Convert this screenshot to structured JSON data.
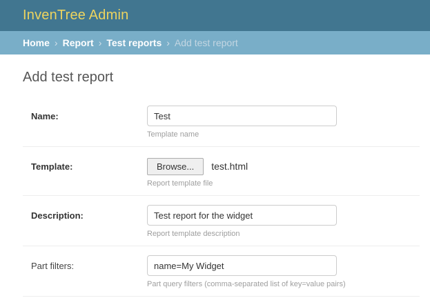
{
  "header": {
    "title": "InvenTree Admin"
  },
  "breadcrumbs": {
    "separator": "›",
    "items": [
      {
        "label": "Home"
      },
      {
        "label": "Report"
      },
      {
        "label": "Test reports"
      },
      {
        "label": "Add test report"
      }
    ]
  },
  "page": {
    "title": "Add test report"
  },
  "form": {
    "fields": [
      {
        "label": "Name:",
        "type": "text",
        "value": "Test",
        "help": "Template name",
        "required": true
      },
      {
        "label": "Template:",
        "type": "file",
        "button": "Browse...",
        "filename": "test.html",
        "help": "Report template file",
        "required": true
      },
      {
        "label": "Description:",
        "type": "text",
        "value": "Test report for the widget",
        "help": "Report template description",
        "required": true
      },
      {
        "label": "Part filters:",
        "type": "text",
        "value": "name=My Widget",
        "help": "Part query filters (comma-separated list of key=value pairs)",
        "required": false
      }
    ]
  },
  "colors": {
    "header_bg": "#417690",
    "breadcrumb_bg": "#79aec8",
    "title_accent": "#edd45f",
    "link_text": "#ffffff",
    "muted_crumb": "#c3d6e2",
    "divider": "#ededed",
    "help_text": "#9e9e9e"
  }
}
